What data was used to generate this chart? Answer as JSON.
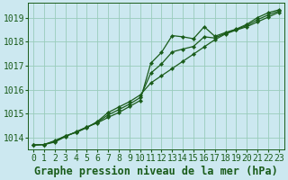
{
  "title": "Graphe pression niveau de la mer (hPa)",
  "bg_color": "#cce8f0",
  "plot_bg_color": "#cce8f0",
  "grid_color": "#99ccbb",
  "line_color": "#1a5c1a",
  "marker_color": "#1a5c1a",
  "xlim": [
    -0.5,
    23.5
  ],
  "ylim": [
    1013.5,
    1019.6
  ],
  "yticks": [
    1014,
    1015,
    1016,
    1017,
    1018,
    1019
  ],
  "xticks": [
    0,
    1,
    2,
    3,
    4,
    5,
    6,
    7,
    8,
    9,
    10,
    11,
    12,
    13,
    14,
    15,
    16,
    17,
    18,
    19,
    20,
    21,
    22,
    23
  ],
  "series1": [
    1013.7,
    1013.72,
    1013.82,
    1014.05,
    1014.25,
    1014.45,
    1014.62,
    1014.85,
    1015.05,
    1015.3,
    1015.55,
    1017.1,
    1017.55,
    1018.25,
    1018.2,
    1018.12,
    1018.62,
    1018.22,
    1018.38,
    1018.52,
    1018.72,
    1019.0,
    1019.2,
    1019.32
  ],
  "series2": [
    1013.7,
    1013.72,
    1013.88,
    1014.08,
    1014.22,
    1014.42,
    1014.68,
    1015.05,
    1015.28,
    1015.5,
    1015.78,
    1016.28,
    1016.58,
    1016.88,
    1017.18,
    1017.48,
    1017.78,
    1018.08,
    1018.32,
    1018.48,
    1018.62,
    1018.82,
    1019.02,
    1019.22
  ],
  "series3": [
    1013.7,
    1013.72,
    1013.85,
    1014.07,
    1014.24,
    1014.44,
    1014.65,
    1014.95,
    1015.17,
    1015.4,
    1015.67,
    1016.69,
    1017.07,
    1017.57,
    1017.69,
    1017.8,
    1018.2,
    1018.15,
    1018.35,
    1018.5,
    1018.67,
    1018.91,
    1019.11,
    1019.27
  ],
  "font_family": "monospace",
  "title_fontsize": 8.5,
  "tick_fontsize": 7,
  "linewidth": 0.9,
  "markersize": 2.2
}
